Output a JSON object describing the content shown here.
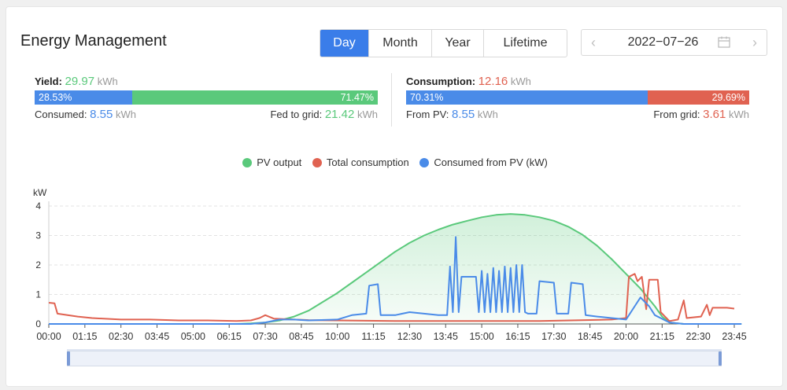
{
  "header": {
    "title": "Energy Management"
  },
  "range_tabs": [
    {
      "key": "day",
      "label": "Day",
      "active": true
    },
    {
      "key": "month",
      "label": "Month",
      "active": false
    },
    {
      "key": "year",
      "label": "Year",
      "active": false
    },
    {
      "key": "lifetime",
      "label": "Lifetime",
      "active": false
    }
  ],
  "date_picker": {
    "value": "2022−07−26",
    "prev_icon": "chevron-left-icon",
    "next_icon": "chevron-right-icon",
    "calendar_icon": "calendar-icon"
  },
  "yield": {
    "label": "Yield:",
    "value": "29.97",
    "unit": "kWh",
    "consumed_pct": "28.53%",
    "fed_pct": "71.47%",
    "consumed_pct_num": 28.53,
    "consumed_label": "Consumed:",
    "consumed_value": "8.55",
    "consumed_unit": "kWh",
    "fed_label": "Fed to grid:",
    "fed_value": "21.42",
    "fed_unit": "kWh"
  },
  "consumption": {
    "label": "Consumption:",
    "value": "12.16",
    "unit": "kWh",
    "pv_pct": "70.31%",
    "grid_pct": "29.69%",
    "pv_pct_num": 70.31,
    "pv_label": "From PV:",
    "pv_value": "8.55",
    "pv_unit": "kWh",
    "grid_label": "From grid:",
    "grid_value": "3.61",
    "grid_unit": "kWh"
  },
  "colors": {
    "pv": "#5ac97b",
    "consumption": "#e06251",
    "consumed_pv": "#4a8be8",
    "accent": "#3a7de9"
  },
  "legend": [
    {
      "name": "PV output",
      "color": "#5ac97b"
    },
    {
      "name": "Total consumption",
      "color": "#e06251"
    },
    {
      "name": "Consumed from PV (kW)",
      "color": "#4a8be8"
    }
  ],
  "chart_data": {
    "type": "line",
    "ylabel": "kW",
    "ylim": [
      0,
      4
    ],
    "yticks": [
      "0",
      "1",
      "2",
      "3",
      "4"
    ],
    "xticks": [
      "00:00",
      "01:15",
      "02:30",
      "03:45",
      "05:00",
      "06:15",
      "07:30",
      "08:45",
      "10:00",
      "11:15",
      "12:30",
      "13:45",
      "15:00",
      "16:15",
      "17:30",
      "18:45",
      "20:00",
      "21:15",
      "22:30",
      "23:45"
    ],
    "grid": true,
    "legend_position": "top-center",
    "series": [
      {
        "name": "PV output",
        "color": "#5ac97b",
        "area": true,
        "points": [
          [
            0,
            0
          ],
          [
            6.5,
            0
          ],
          [
            7.0,
            0.02
          ],
          [
            7.5,
            0.05
          ],
          [
            8.0,
            0.12
          ],
          [
            8.5,
            0.25
          ],
          [
            9.0,
            0.45
          ],
          [
            9.5,
            0.75
          ],
          [
            10.0,
            1.05
          ],
          [
            10.5,
            1.4
          ],
          [
            11.0,
            1.75
          ],
          [
            11.5,
            2.1
          ],
          [
            12.0,
            2.45
          ],
          [
            12.5,
            2.75
          ],
          [
            13.0,
            3.0
          ],
          [
            13.5,
            3.2
          ],
          [
            14.0,
            3.37
          ],
          [
            14.5,
            3.5
          ],
          [
            15.0,
            3.62
          ],
          [
            15.5,
            3.7
          ],
          [
            16.0,
            3.73
          ],
          [
            16.5,
            3.7
          ],
          [
            17.0,
            3.62
          ],
          [
            17.5,
            3.5
          ],
          [
            18.0,
            3.3
          ],
          [
            18.5,
            3.02
          ],
          [
            19.0,
            2.65
          ],
          [
            19.5,
            2.2
          ],
          [
            20.0,
            1.7
          ],
          [
            20.5,
            1.2
          ],
          [
            21.0,
            0.6
          ],
          [
            21.25,
            0.25
          ],
          [
            21.5,
            0.05
          ],
          [
            22.0,
            0
          ],
          [
            24.0,
            0
          ]
        ]
      },
      {
        "name": "Total consumption",
        "color": "#e06251",
        "area": false,
        "points": [
          [
            0,
            0.72
          ],
          [
            0.2,
            0.7
          ],
          [
            0.3,
            0.35
          ],
          [
            1.0,
            0.25
          ],
          [
            1.5,
            0.2
          ],
          [
            2.5,
            0.15
          ],
          [
            3.5,
            0.15
          ],
          [
            4.5,
            0.12
          ],
          [
            5.5,
            0.12
          ],
          [
            6.5,
            0.1
          ],
          [
            7.0,
            0.12
          ],
          [
            7.3,
            0.2
          ],
          [
            7.5,
            0.3
          ],
          [
            7.8,
            0.18
          ],
          [
            8.5,
            0.15
          ],
          [
            9.0,
            0.13
          ],
          [
            12.0,
            0.1
          ],
          [
            17.0,
            0.1
          ],
          [
            19.5,
            0.15
          ],
          [
            20.0,
            0.2
          ],
          [
            20.1,
            1.6
          ],
          [
            20.3,
            1.7
          ],
          [
            20.4,
            1.45
          ],
          [
            20.55,
            1.6
          ],
          [
            20.7,
            0.5
          ],
          [
            20.8,
            1.5
          ],
          [
            21.1,
            1.5
          ],
          [
            21.2,
            0.4
          ],
          [
            21.5,
            0.1
          ],
          [
            21.8,
            0.15
          ],
          [
            22.0,
            0.8
          ],
          [
            22.1,
            0.2
          ],
          [
            22.6,
            0.25
          ],
          [
            22.8,
            0.65
          ],
          [
            22.9,
            0.3
          ],
          [
            23.0,
            0.55
          ],
          [
            23.5,
            0.55
          ],
          [
            23.75,
            0.52
          ]
        ]
      },
      {
        "name": "Consumed from PV (kW)",
        "color": "#4a8be8",
        "area": false,
        "points": [
          [
            0,
            0
          ],
          [
            7.0,
            0
          ],
          [
            7.5,
            0.05
          ],
          [
            8.0,
            0.15
          ],
          [
            8.5,
            0.15
          ],
          [
            9.0,
            0.12
          ],
          [
            10.0,
            0.15
          ],
          [
            10.5,
            0.3
          ],
          [
            11.0,
            0.35
          ],
          [
            11.1,
            1.3
          ],
          [
            11.4,
            1.35
          ],
          [
            11.5,
            0.3
          ],
          [
            12.0,
            0.3
          ],
          [
            12.5,
            0.4
          ],
          [
            13.0,
            0.35
          ],
          [
            13.5,
            0.3
          ],
          [
            13.8,
            0.3
          ],
          [
            13.9,
            1.95
          ],
          [
            14.0,
            0.4
          ],
          [
            14.1,
            2.95
          ],
          [
            14.2,
            0.4
          ],
          [
            14.3,
            1.6
          ],
          [
            14.8,
            1.6
          ],
          [
            14.9,
            0.4
          ],
          [
            15.0,
            1.8
          ],
          [
            15.1,
            0.4
          ],
          [
            15.2,
            1.7
          ],
          [
            15.3,
            0.4
          ],
          [
            15.4,
            1.9
          ],
          [
            15.5,
            0.4
          ],
          [
            15.6,
            1.8
          ],
          [
            15.7,
            0.4
          ],
          [
            15.8,
            1.95
          ],
          [
            15.9,
            0.4
          ],
          [
            16.0,
            1.9
          ],
          [
            16.1,
            0.4
          ],
          [
            16.2,
            2.0
          ],
          [
            16.3,
            0.4
          ],
          [
            16.4,
            2.0
          ],
          [
            16.5,
            0.4
          ],
          [
            16.6,
            0.35
          ],
          [
            16.9,
            0.35
          ],
          [
            17.0,
            1.45
          ],
          [
            17.5,
            1.4
          ],
          [
            17.6,
            0.35
          ],
          [
            18.0,
            0.35
          ],
          [
            18.1,
            1.4
          ],
          [
            18.5,
            1.35
          ],
          [
            18.6,
            0.3
          ],
          [
            19.0,
            0.25
          ],
          [
            19.5,
            0.2
          ],
          [
            20.0,
            0.15
          ],
          [
            20.3,
            0.6
          ],
          [
            20.5,
            0.9
          ],
          [
            20.8,
            0.6
          ],
          [
            21.0,
            0.3
          ],
          [
            21.5,
            0.05
          ],
          [
            22.0,
            0
          ],
          [
            24.0,
            0
          ]
        ]
      }
    ]
  }
}
